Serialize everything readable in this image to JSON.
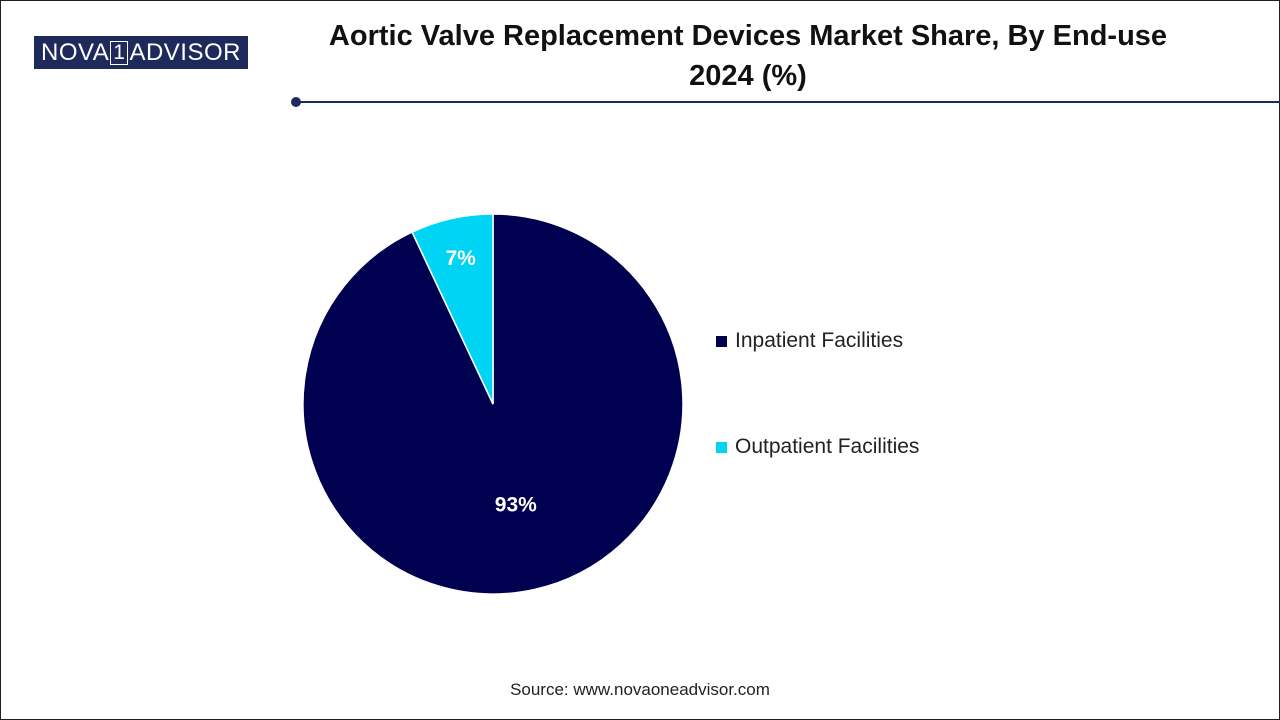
{
  "logo": {
    "left": "NOVA",
    "box": "1",
    "right": "ADVISOR"
  },
  "title": {
    "line1": "Aortic Valve Replacement Devices Market Share, By End-use",
    "line2": "2024 (%)"
  },
  "source": "Source: www.novaoneadvisor.com",
  "colors": {
    "brand": "#1f2a5c",
    "inpatient": "#000050",
    "outpatient": "#00d4f5"
  },
  "chart_data": {
    "type": "pie",
    "title": "Aortic Valve Replacement Devices Market Share, By End-use 2024 (%)",
    "unit": "%",
    "start_angle": "12 o'clock, clockwise",
    "legend_position": "right",
    "slices": [
      {
        "label": "Inpatient Facilities",
        "value": 93,
        "display": "93%",
        "color": "#000050"
      },
      {
        "label": "Outpatient Facilities",
        "value": 7,
        "display": "7%",
        "color": "#00d4f5"
      }
    ]
  }
}
